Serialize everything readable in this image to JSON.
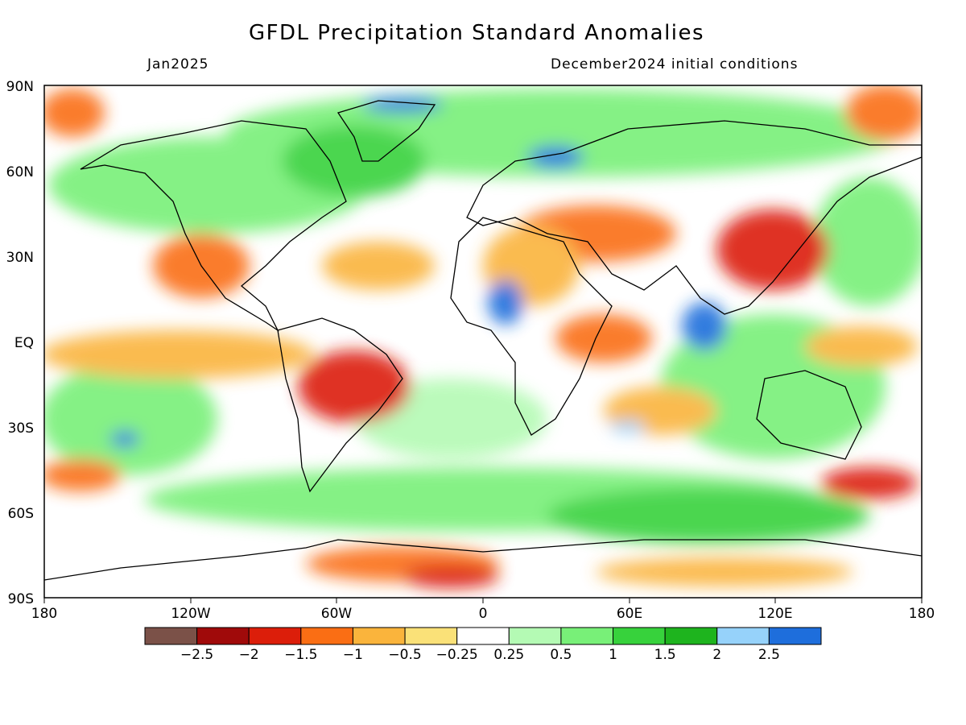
{
  "title": "GFDL Precipitation Standard Anomalies",
  "subtitle_left": "Jan2025",
  "subtitle_right": "December2024 initial conditions",
  "y_axis_labels": [
    "90N",
    "60N",
    "30N",
    "EQ",
    "30S",
    "60S",
    "90S"
  ],
  "x_axis_labels": [
    "180",
    "120W",
    "60W",
    "0",
    "60E",
    "120E",
    "180"
  ],
  "colorbar": {
    "colors": [
      "#7b5148",
      "#a00a0a",
      "#dc1e0a",
      "#fa6e14",
      "#fab43c",
      "#fae178",
      "#ffffff",
      "#b4fab4",
      "#78f078",
      "#37d23c",
      "#1eb41e",
      "#96d2fa",
      "#1e6edc"
    ],
    "labels": [
      "-2.5",
      "-2",
      "-1.5",
      "-1",
      "-0.5",
      "-0.25",
      "0.25",
      "0.5",
      "1",
      "1.5",
      "2",
      "2.5"
    ]
  },
  "map": {
    "lon_range": [
      -180,
      180
    ],
    "lat_range": [
      -90,
      90
    ],
    "anomaly_regions": [
      {
        "name": "Central Africa / Sahel wet",
        "category": "2.5+",
        "color": "#1e6edc",
        "lon": 5,
        "lat": 15
      },
      {
        "name": "Bay of Bengal / Indian Ocean wet",
        "category": "2.5+",
        "color": "#1e6edc",
        "lon": 90,
        "lat": 5
      },
      {
        "name": "Scandinavia / Barents wet",
        "category": "2.5+",
        "color": "#1e6edc",
        "lon": 35,
        "lat": 65
      },
      {
        "name": "Arctic north of Greenland wet",
        "category": "2.5+",
        "color": "#1e6edc",
        "lon": -50,
        "lat": 84
      },
      {
        "name": "South-east Pacific wet",
        "category": "2.5+",
        "color": "#1e6edc",
        "lon": -150,
        "lat": -35
      },
      {
        "name": "Southern Brazil dry",
        "category": "-2",
        "color": "#a00a0a",
        "lon": -47,
        "lat": -15
      },
      {
        "name": "East China / Japan dry",
        "category": "-1.5",
        "color": "#dc1e0a",
        "lon": 120,
        "lat": 33
      },
      {
        "name": "Middle East / Central Asia dry",
        "category": "-1.5",
        "color": "#dc1e0a",
        "lon": 55,
        "lat": 38
      },
      {
        "name": "Mexico dry",
        "category": "-1.5",
        "color": "#dc1e0a",
        "lon": -110,
        "lat": 28
      },
      {
        "name": "East Africa / Arabian Sea dry",
        "category": "-1.5",
        "color": "#dc1e0a",
        "lon": 45,
        "lat": 0
      },
      {
        "name": "Southern Ocean near New Zealand dry",
        "category": "-2",
        "color": "#a00a0a",
        "lon": 170,
        "lat": -45
      },
      {
        "name": "Antarctic coast dry",
        "category": "-1.5",
        "color": "#dc1e0a",
        "lon": -50,
        "lat": -75
      },
      {
        "name": "Equatorial Pacific dry band",
        "category": "-0.5",
        "color": "#fab43c",
        "lon": -150,
        "lat": 0
      }
    ]
  }
}
